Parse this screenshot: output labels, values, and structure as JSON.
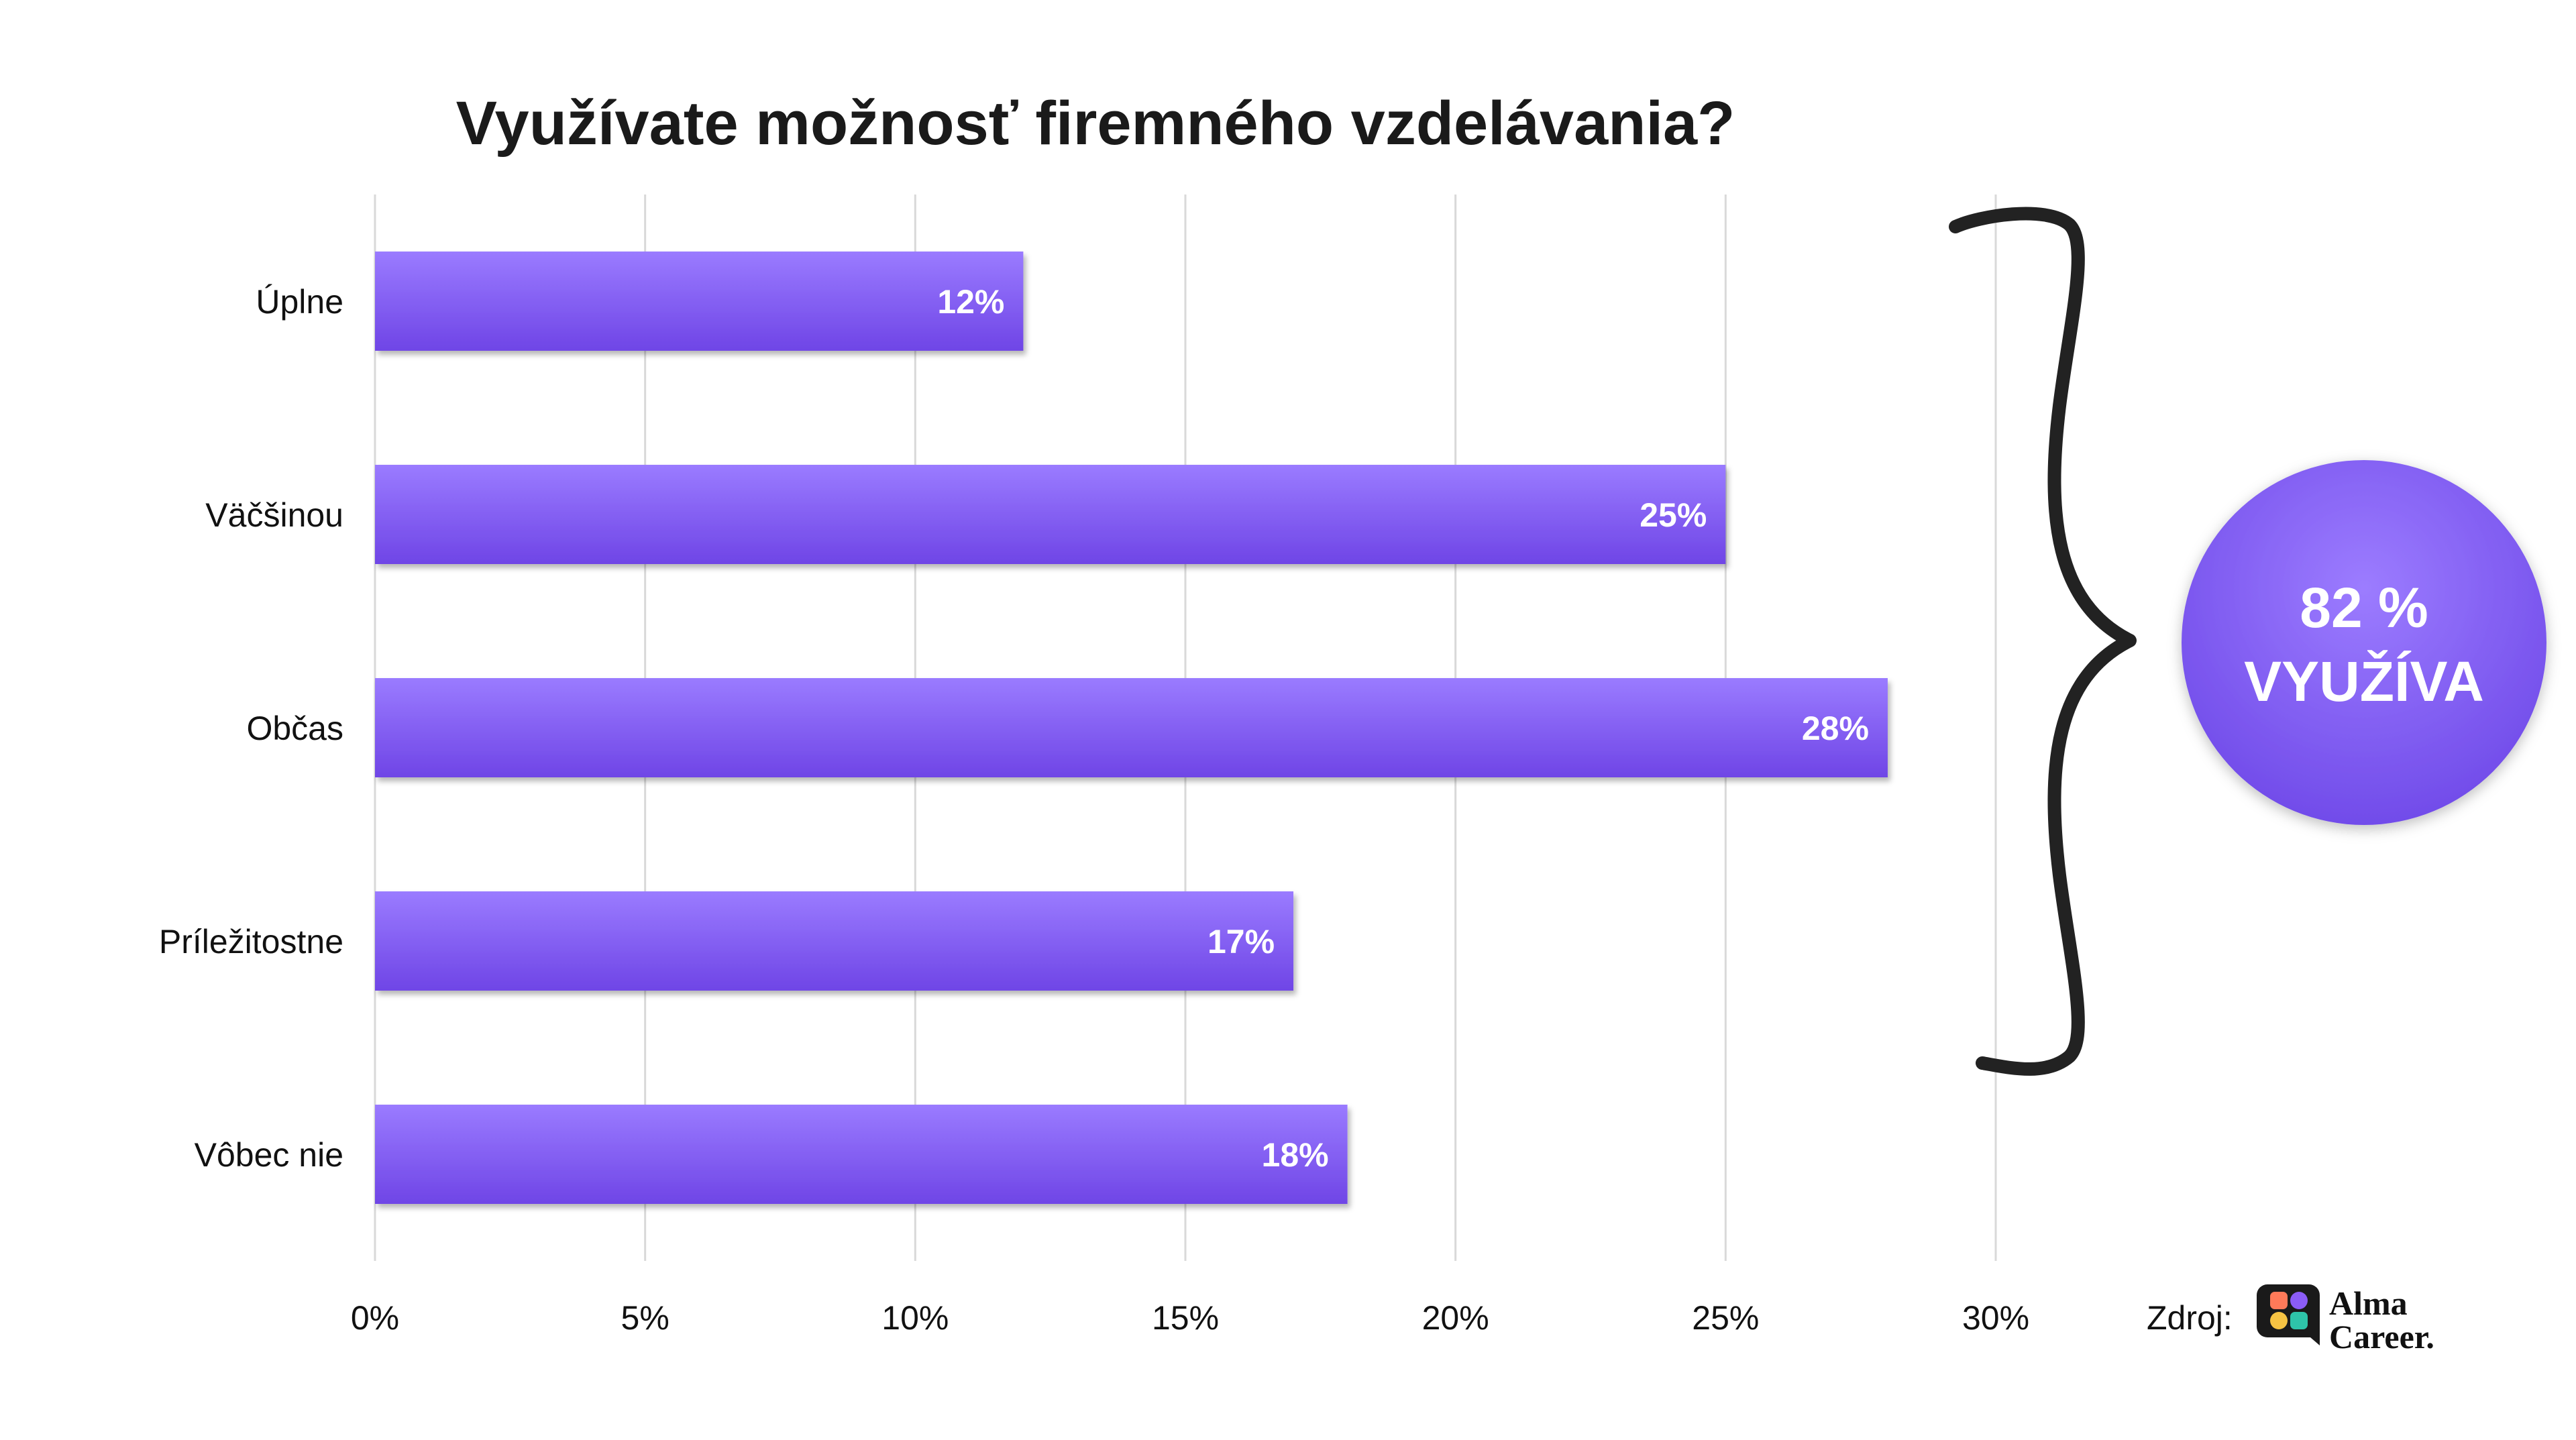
{
  "chart_data": {
    "type": "bar",
    "orientation": "horizontal",
    "title": "Využívate možnosť firemného vzdelávania?",
    "categories": [
      "Úplne",
      "Väčšinou",
      "Občas",
      "Príležitostne",
      "Vôbec nie"
    ],
    "values": [
      12,
      25,
      28,
      17,
      18
    ],
    "value_labels": [
      "12%",
      "25%",
      "28%",
      "17%",
      "18%"
    ],
    "xlim": [
      0,
      30
    ],
    "x_ticks": [
      0,
      5,
      10,
      15,
      20,
      25,
      30
    ],
    "x_tick_labels": [
      "0%",
      "5%",
      "10%",
      "15%",
      "20%",
      "25%",
      "30%"
    ],
    "grid": "vertical",
    "legend": "none",
    "colors": {
      "bar_top": "#9A7BFF",
      "bar_bottom": "#6F45E6",
      "grid": "#D9D9D9",
      "brace": "#222222",
      "badge": "#8B66F5"
    }
  },
  "summary": {
    "line1": "82 %",
    "line2": "VYUŽÍVA"
  },
  "source": {
    "label": "Zdroj:",
    "brand_line1": "Alma",
    "brand_line2": "Career."
  }
}
